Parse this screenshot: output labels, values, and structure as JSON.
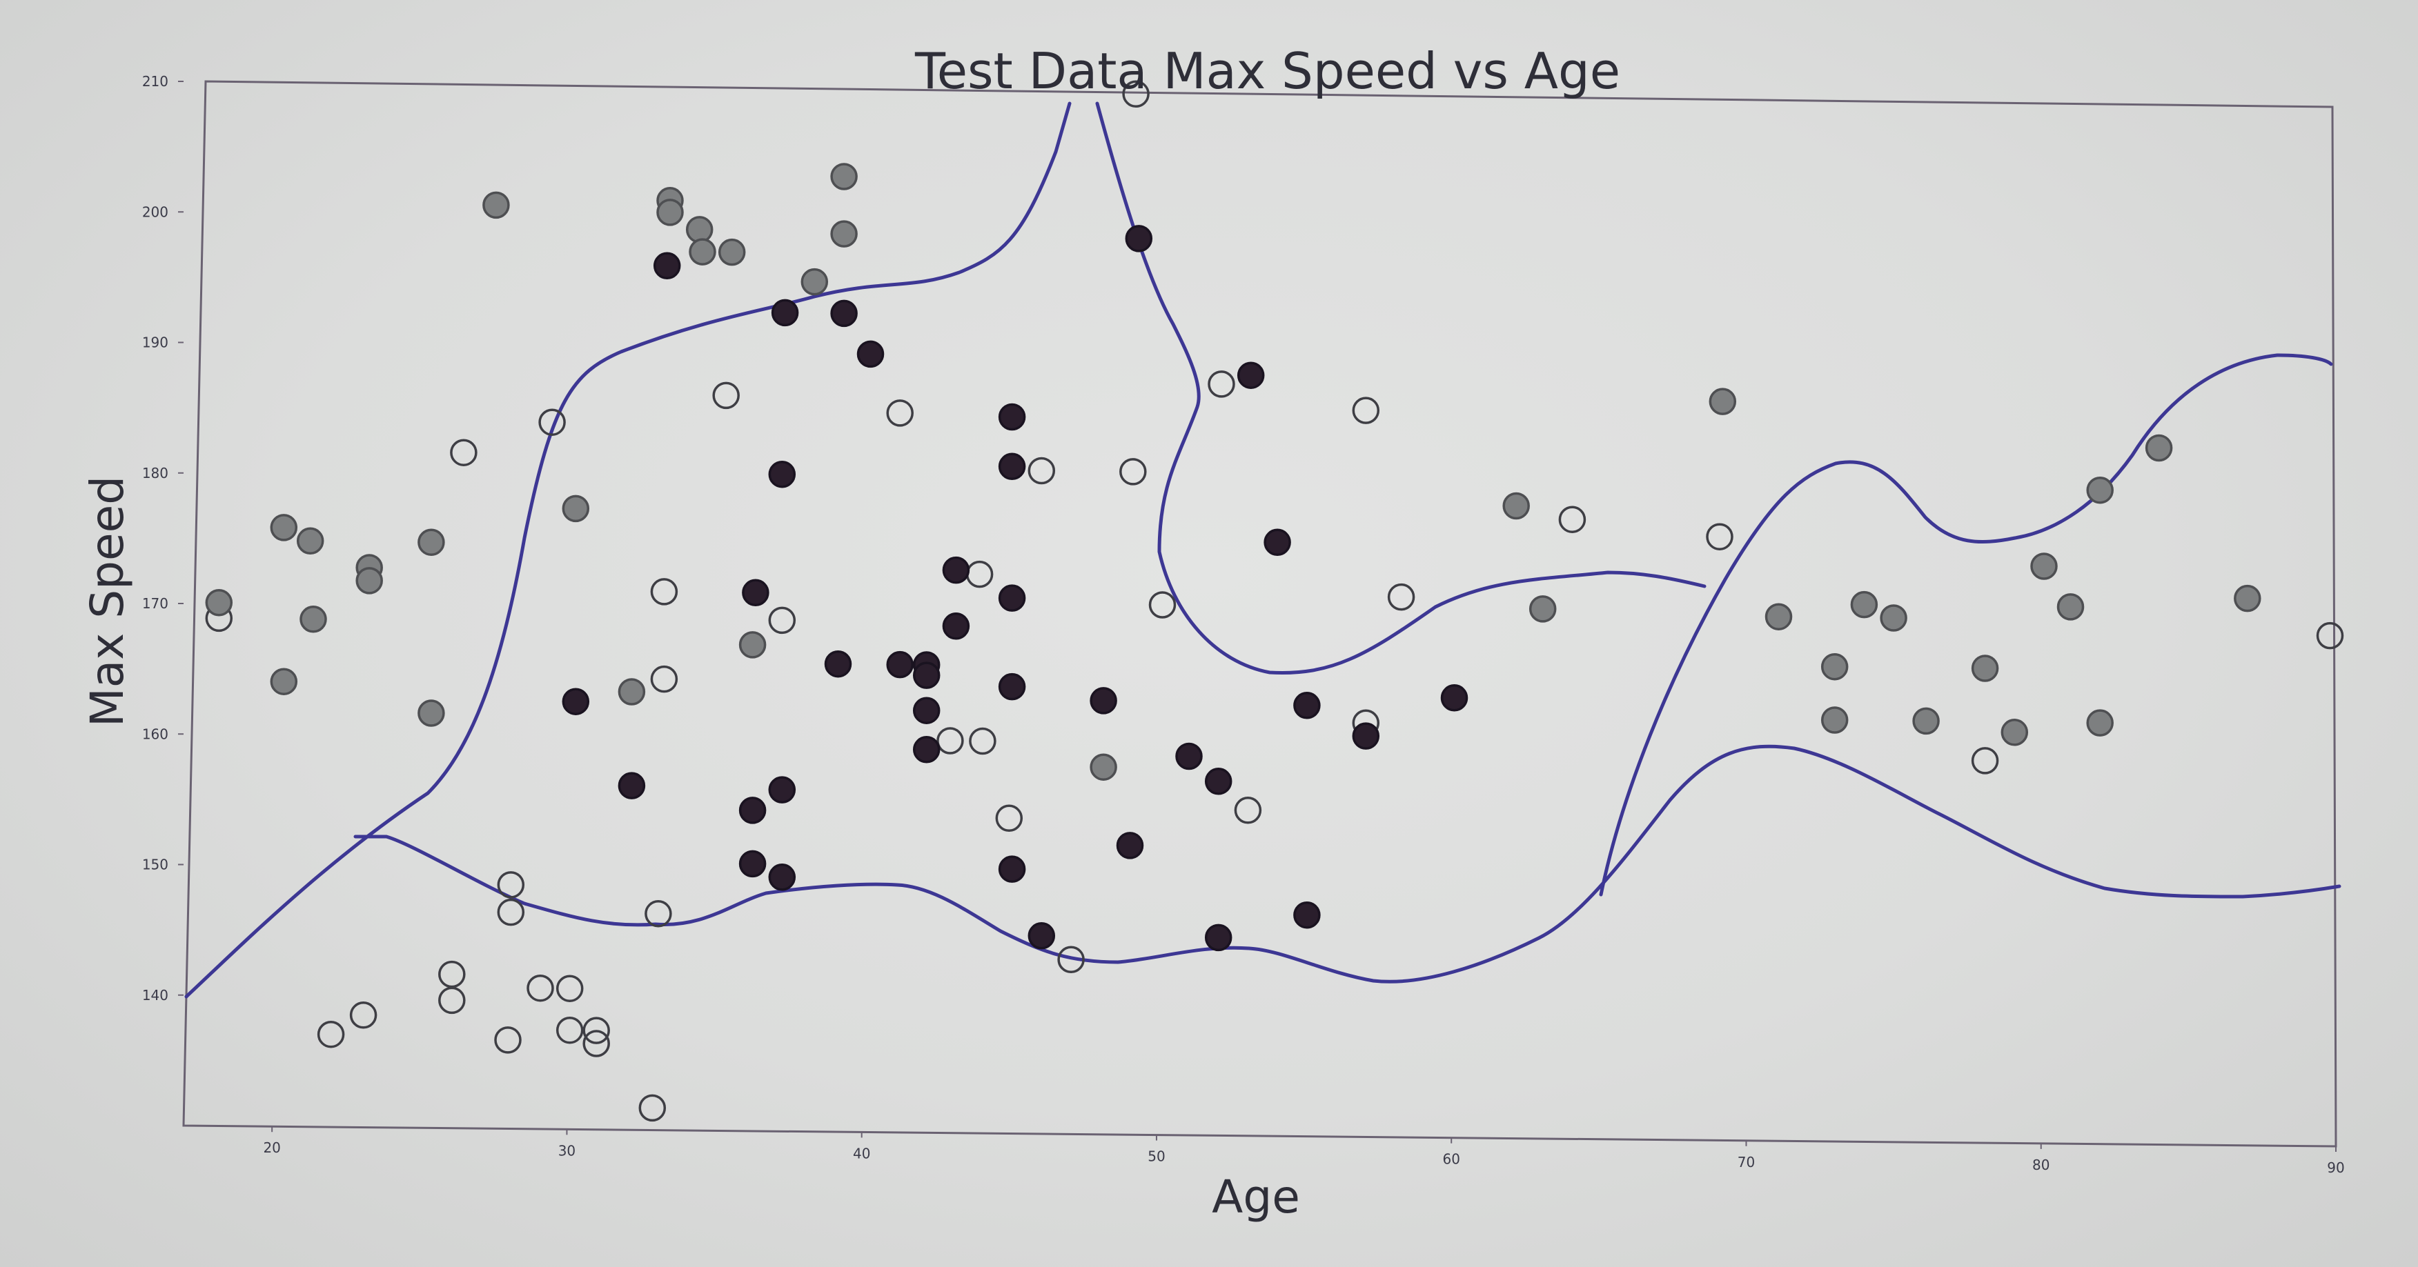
{
  "chart_data": {
    "type": "scatter",
    "title": "Test Data Max Speed vs Age",
    "xlabel": "Age",
    "ylabel": "Max Speed",
    "xlim": [
      17,
      90
    ],
    "ylim": [
      130,
      210
    ],
    "xticks": [
      20,
      30,
      40,
      50,
      60,
      70,
      80,
      90
    ],
    "yticks": [
      140,
      150,
      160,
      170,
      180,
      190,
      200,
      210
    ],
    "grid": false,
    "colors": {
      "dark": "#2a1e2c",
      "gray": "#7d7f80",
      "hollow_stroke": "#3e3e44",
      "boundary": "#3d3794",
      "axes": "#6a6272"
    },
    "series": [
      {
        "marker": "hollow",
        "points": [
          [
            18.2,
            168.9
          ],
          [
            26.5,
            181.8
          ],
          [
            29.5,
            184.2
          ],
          [
            28.1,
            148.7
          ],
          [
            28.1,
            146.6
          ],
          [
            26.1,
            141.8
          ],
          [
            26.1,
            139.8
          ],
          [
            22.0,
            137.1
          ],
          [
            23.1,
            138.6
          ],
          [
            28.0,
            136.8
          ],
          [
            29.1,
            140.8
          ],
          [
            30.1,
            140.8
          ],
          [
            30.1,
            137.6
          ],
          [
            31.0,
            137.6
          ],
          [
            31.0,
            136.6
          ],
          [
            32.9,
            131.7
          ],
          [
            33.1,
            146.6
          ],
          [
            33.3,
            171.3
          ],
          [
            33.3,
            164.6
          ],
          [
            35.4,
            186.4
          ],
          [
            37.3,
            169.2
          ],
          [
            41.3,
            185.2
          ],
          [
            43.0,
            160.1
          ],
          [
            44.1,
            160.1
          ],
          [
            44.0,
            172.9
          ],
          [
            45.0,
            154.2
          ],
          [
            46.1,
            180.9
          ],
          [
            47.1,
            143.4
          ],
          [
            49.3,
            209.9
          ],
          [
            49.2,
            180.9
          ],
          [
            50.2,
            170.7
          ],
          [
            52.2,
            187.7
          ],
          [
            53.1,
            155.0
          ],
          [
            57.1,
            185.8
          ],
          [
            57.1,
            161.8
          ],
          [
            58.3,
            171.5
          ],
          [
            64.1,
            177.6
          ],
          [
            69.1,
            176.4
          ],
          [
            78.1,
            159.4
          ],
          [
            89.8,
            169.3
          ]
        ]
      },
      {
        "marker": "gray",
        "points": [
          [
            18.2,
            170.1
          ],
          [
            20.4,
            164.1
          ],
          [
            20.4,
            175.9
          ],
          [
            21.3,
            174.9
          ],
          [
            21.4,
            168.9
          ],
          [
            23.3,
            172.9
          ],
          [
            23.3,
            171.9
          ],
          [
            25.4,
            174.9
          ],
          [
            25.4,
            161.8
          ],
          [
            27.6,
            200.8
          ],
          [
            30.3,
            177.6
          ],
          [
            32.2,
            163.6
          ],
          [
            33.5,
            201.3
          ],
          [
            33.5,
            200.4
          ],
          [
            34.5,
            199.1
          ],
          [
            34.6,
            197.4
          ],
          [
            35.6,
            197.4
          ],
          [
            36.3,
            167.3
          ],
          [
            38.4,
            195.2
          ],
          [
            39.4,
            203.3
          ],
          [
            39.4,
            198.9
          ],
          [
            48.2,
            158.2
          ],
          [
            62.2,
            178.6
          ],
          [
            63.1,
            170.7
          ],
          [
            69.2,
            186.8
          ],
          [
            71.1,
            170.3
          ],
          [
            73.0,
            166.5
          ],
          [
            73.0,
            162.4
          ],
          [
            74.0,
            171.3
          ],
          [
            75.0,
            170.3
          ],
          [
            76.1,
            162.4
          ],
          [
            78.1,
            166.5
          ],
          [
            79.1,
            161.6
          ],
          [
            80.1,
            174.4
          ],
          [
            81.0,
            171.3
          ],
          [
            82.0,
            162.4
          ],
          [
            82.0,
            180.3
          ],
          [
            84.0,
            183.6
          ],
          [
            87.0,
            172.1
          ]
        ]
      },
      {
        "marker": "dark",
        "points": [
          [
            30.3,
            162.8
          ],
          [
            32.2,
            156.4
          ],
          [
            33.4,
            196.3
          ],
          [
            36.4,
            171.3
          ],
          [
            36.3,
            154.6
          ],
          [
            36.3,
            150.5
          ],
          [
            37.4,
            192.8
          ],
          [
            37.3,
            180.4
          ],
          [
            37.3,
            156.2
          ],
          [
            37.3,
            149.5
          ],
          [
            39.2,
            165.9
          ],
          [
            39.4,
            192.8
          ],
          [
            40.3,
            189.7
          ],
          [
            41.3,
            165.9
          ],
          [
            42.2,
            165.9
          ],
          [
            42.2,
            165.1
          ],
          [
            42.2,
            162.4
          ],
          [
            42.2,
            159.4
          ],
          [
            43.2,
            173.2
          ],
          [
            43.2,
            168.9
          ],
          [
            45.1,
            185.0
          ],
          [
            45.1,
            181.2
          ],
          [
            45.1,
            171.1
          ],
          [
            45.1,
            164.3
          ],
          [
            45.1,
            150.3
          ],
          [
            46.1,
            145.2
          ],
          [
            48.2,
            163.3
          ],
          [
            49.1,
            152.2
          ],
          [
            49.4,
            198.8
          ],
          [
            51.1,
            159.1
          ],
          [
            52.1,
            157.2
          ],
          [
            52.1,
            145.2
          ],
          [
            53.2,
            188.4
          ],
          [
            54.1,
            175.6
          ],
          [
            55.1,
            163.1
          ],
          [
            55.1,
            147.0
          ],
          [
            57.1,
            160.8
          ],
          [
            60.1,
            163.8
          ]
        ]
      }
    ]
  }
}
